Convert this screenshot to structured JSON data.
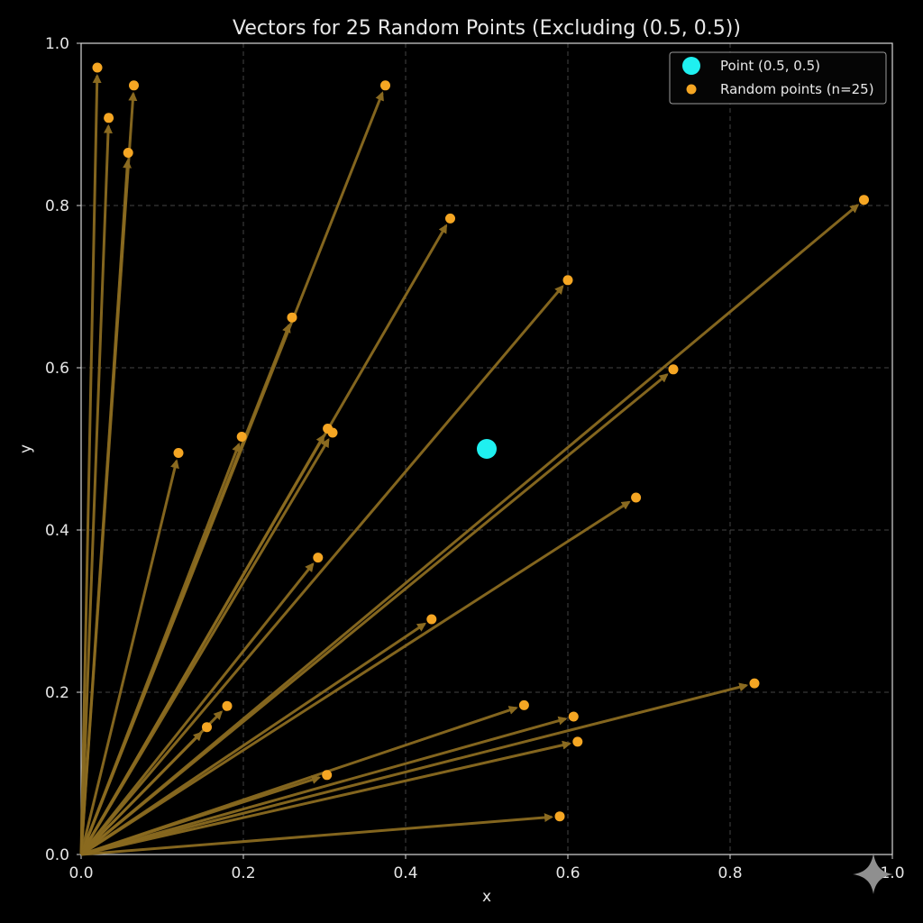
{
  "chart_data": {
    "type": "scatter",
    "title": "Vectors for 25 Random Points (Excluding (0.5, 0.5))",
    "xlabel": "x",
    "ylabel": "y",
    "xlim": [
      0.0,
      1.0
    ],
    "ylim": [
      0.0,
      1.0
    ],
    "xticks": [
      0.0,
      0.2,
      0.4,
      0.6,
      0.8,
      1.0
    ],
    "yticks": [
      0.0,
      0.2,
      0.4,
      0.6,
      0.8,
      1.0
    ],
    "xtick_labels": [
      "0.0",
      "0.2",
      "0.4",
      "0.6",
      "0.8",
      "1.0"
    ],
    "ytick_labels": [
      "0.0",
      "0.2",
      "0.4",
      "0.6",
      "0.8",
      "1.0"
    ],
    "grid": true,
    "legend_position": "top-right",
    "origin": [
      0.0,
      0.0
    ],
    "highlight_point": {
      "name": "Point (0.5, 0.5)",
      "x": 0.5,
      "y": 0.5,
      "color": "#1ff0f0"
    },
    "random_points": {
      "name": "Random points (n=25)",
      "color": "#f5a623",
      "arrow_color": "#8a6a20",
      "points": [
        {
          "x": 0.02,
          "y": 0.97
        },
        {
          "x": 0.034,
          "y": 0.908
        },
        {
          "x": 0.065,
          "y": 0.948
        },
        {
          "x": 0.058,
          "y": 0.865
        },
        {
          "x": 0.375,
          "y": 0.948
        },
        {
          "x": 0.12,
          "y": 0.495
        },
        {
          "x": 0.26,
          "y": 0.662
        },
        {
          "x": 0.198,
          "y": 0.515
        },
        {
          "x": 0.455,
          "y": 0.784
        },
        {
          "x": 0.304,
          "y": 0.525
        },
        {
          "x": 0.31,
          "y": 0.52
        },
        {
          "x": 0.6,
          "y": 0.708
        },
        {
          "x": 0.965,
          "y": 0.807
        },
        {
          "x": 0.73,
          "y": 0.598
        },
        {
          "x": 0.684,
          "y": 0.44
        },
        {
          "x": 0.292,
          "y": 0.366
        },
        {
          "x": 0.432,
          "y": 0.29
        },
        {
          "x": 0.18,
          "y": 0.183
        },
        {
          "x": 0.155,
          "y": 0.157
        },
        {
          "x": 0.83,
          "y": 0.211
        },
        {
          "x": 0.546,
          "y": 0.184
        },
        {
          "x": 0.607,
          "y": 0.17
        },
        {
          "x": 0.612,
          "y": 0.139
        },
        {
          "x": 0.303,
          "y": 0.098
        },
        {
          "x": 0.59,
          "y": 0.047
        }
      ]
    }
  },
  "legend": {
    "highlight_label": "Point (0.5, 0.5)",
    "random_label": "Random points (n=25)"
  },
  "icons": {
    "watermark": "sparkle-icon"
  }
}
